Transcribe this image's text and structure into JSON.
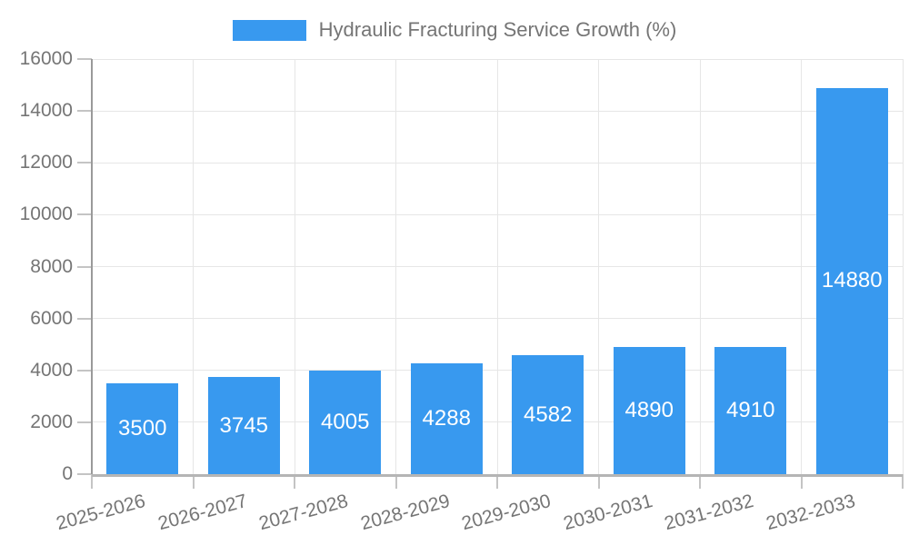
{
  "legend": {
    "label": "Hydraulic Fracturing Service Growth (%)"
  },
  "chart_data": {
    "type": "bar",
    "title": "Hydraulic Fracturing Service Growth (%)",
    "categories": [
      "2025-2026",
      "2026-2027",
      "2027-2028",
      "2028-2029",
      "2029-2030",
      "2030-2031",
      "2031-2032",
      "2032-2033"
    ],
    "values": [
      3500,
      3745,
      4005,
      4288,
      4582,
      4890,
      4910,
      14880
    ],
    "xlabel": "",
    "ylabel": "",
    "ylim": [
      0,
      16000
    ],
    "ytick_step": 2000,
    "ytick_labels": [
      "0",
      "2000",
      "4000",
      "6000",
      "8000",
      "10000",
      "12000",
      "14000",
      "16000"
    ],
    "grid": true,
    "legend_position": "top",
    "value_labels": "inside-center",
    "colors": {
      "bar": "#3899ef",
      "value_label": "#ffffff",
      "axis_text": "#757575",
      "gridline": "#e6e6e6",
      "axis_line_y": "#9a9a9a",
      "axis_line_x": "#b5b5b5",
      "tick": "#c4c4c4"
    }
  }
}
